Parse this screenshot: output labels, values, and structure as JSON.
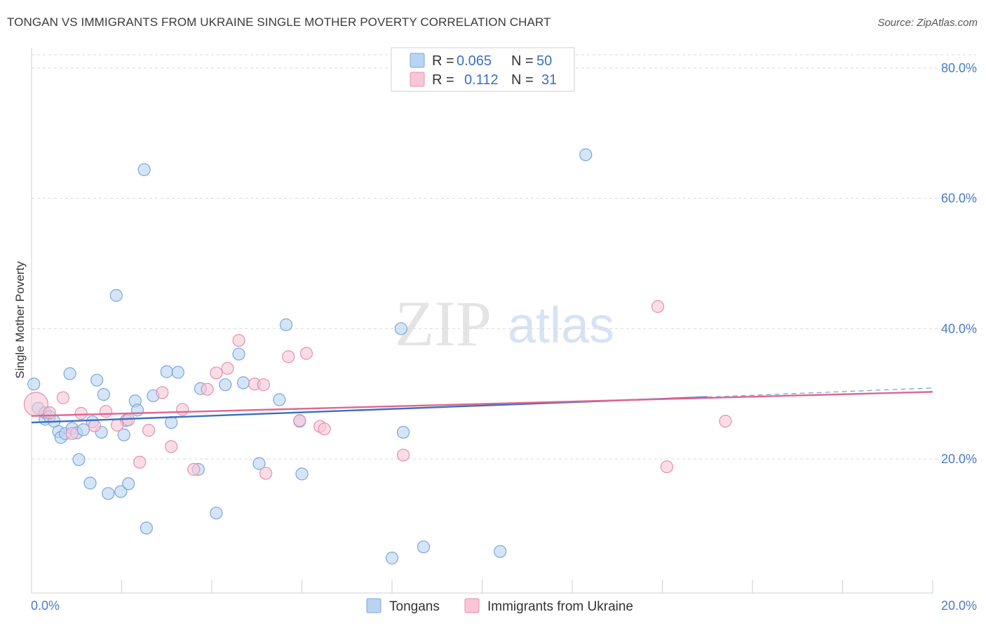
{
  "title": "TONGAN VS IMMIGRANTS FROM UKRAINE SINGLE MOTHER POVERTY CORRELATION CHART",
  "source": "Source: ZipAtlas.com",
  "watermark": {
    "zip": "ZIP",
    "atlas": "atlas"
  },
  "legend": {
    "rows": [
      {
        "r_label": "R =",
        "r_value": "0.065",
        "n_label": "N =",
        "n_value": "50"
      },
      {
        "r_label": "R =",
        "r_value": "0.112",
        "n_label": "N =",
        "n_value": "31"
      }
    ]
  },
  "colors": {
    "blue_fill": "#b9d3f3",
    "blue_stroke": "#7aa7dd",
    "blue_line": "#3a6fc4",
    "pink_fill": "#f8c6d6",
    "pink_stroke": "#e68fae",
    "pink_line": "#e0668f",
    "axis_label": "#4a7cc7",
    "grid": "#d9d9d9"
  },
  "chart_data": {
    "type": "scatter",
    "title": "TONGAN VS IMMIGRANTS FROM UKRAINE SINGLE MOTHER POVERTY CORRELATION CHART",
    "xlabel": "",
    "ylabel": "Single Mother Poverty",
    "xlim": [
      0,
      20
    ],
    "ylim": [
      0,
      82
    ],
    "x_tick_labels": [
      "0.0%",
      "20.0%"
    ],
    "y_ticks": [
      20,
      40,
      60,
      80
    ],
    "y_tick_labels": [
      "20.0%",
      "40.0%",
      "60.0%",
      "80.0%"
    ],
    "grid": true,
    "legend_position": "top-center",
    "series": [
      {
        "name": "Tongans",
        "color": "#7aa7dd",
        "r": 0.065,
        "n": 50,
        "trend": {
          "x": [
            0,
            15
          ],
          "y": [
            25.6,
            29.5
          ],
          "dashed_to": [
            20,
            30.9
          ]
        },
        "points": [
          [
            0.05,
            31.5
          ],
          [
            0.15,
            27.8
          ],
          [
            0.3,
            26.1
          ],
          [
            0.3,
            27.1
          ],
          [
            0.4,
            26.5
          ],
          [
            0.5,
            25.8
          ],
          [
            0.6,
            24.2
          ],
          [
            0.65,
            23.3
          ],
          [
            0.75,
            23.9
          ],
          [
            0.85,
            33.1
          ],
          [
            0.9,
            24.7
          ],
          [
            1.0,
            24.0
          ],
          [
            1.05,
            19.9
          ],
          [
            1.15,
            24.5
          ],
          [
            1.3,
            16.3
          ],
          [
            1.35,
            25.7
          ],
          [
            1.45,
            32.1
          ],
          [
            1.55,
            24.1
          ],
          [
            1.6,
            29.9
          ],
          [
            1.7,
            14.7
          ],
          [
            1.88,
            45.1
          ],
          [
            1.98,
            15.0
          ],
          [
            2.05,
            23.7
          ],
          [
            2.1,
            25.9
          ],
          [
            2.15,
            16.2
          ],
          [
            2.3,
            28.9
          ],
          [
            2.35,
            27.5
          ],
          [
            2.5,
            64.4
          ],
          [
            2.55,
            9.4
          ],
          [
            2.7,
            29.7
          ],
          [
            3.0,
            33.4
          ],
          [
            3.1,
            25.6
          ],
          [
            3.25,
            33.3
          ],
          [
            3.75,
            30.8
          ],
          [
            3.7,
            18.4
          ],
          [
            4.1,
            11.7
          ],
          [
            4.3,
            31.4
          ],
          [
            4.6,
            36.1
          ],
          [
            4.7,
            31.7
          ],
          [
            5.05,
            19.3
          ],
          [
            5.5,
            29.1
          ],
          [
            5.65,
            40.6
          ],
          [
            5.95,
            25.8
          ],
          [
            6.0,
            17.7
          ],
          [
            8.0,
            4.8
          ],
          [
            8.2,
            40.0
          ],
          [
            8.25,
            24.1
          ],
          [
            8.7,
            6.5
          ],
          [
            10.4,
            5.8
          ],
          [
            12.3,
            66.7
          ]
        ]
      },
      {
        "name": "Immigrants from Ukraine",
        "color": "#e68fae",
        "r": 0.112,
        "n": 31,
        "trend": {
          "x": [
            0,
            20
          ],
          "y": [
            26.6,
            30.3
          ]
        },
        "points": [
          [
            0.1,
            28.4
          ],
          [
            0.4,
            27.1
          ],
          [
            0.7,
            29.4
          ],
          [
            0.9,
            23.9
          ],
          [
            1.1,
            27.0
          ],
          [
            1.4,
            25.1
          ],
          [
            1.65,
            27.3
          ],
          [
            1.9,
            25.2
          ],
          [
            2.15,
            26.0
          ],
          [
            2.4,
            19.5
          ],
          [
            2.6,
            24.4
          ],
          [
            2.9,
            30.2
          ],
          [
            3.1,
            21.9
          ],
          [
            3.35,
            27.6
          ],
          [
            3.6,
            18.4
          ],
          [
            3.9,
            30.7
          ],
          [
            4.1,
            33.2
          ],
          [
            4.35,
            33.9
          ],
          [
            4.6,
            38.2
          ],
          [
            4.95,
            31.5
          ],
          [
            5.15,
            31.4
          ],
          [
            5.2,
            17.8
          ],
          [
            5.7,
            35.7
          ],
          [
            5.95,
            25.9
          ],
          [
            6.1,
            36.2
          ],
          [
            6.4,
            25.0
          ],
          [
            6.5,
            24.6
          ],
          [
            8.25,
            20.6
          ],
          [
            13.9,
            43.4
          ],
          [
            14.1,
            18.8
          ],
          [
            15.4,
            25.8
          ]
        ]
      }
    ]
  }
}
